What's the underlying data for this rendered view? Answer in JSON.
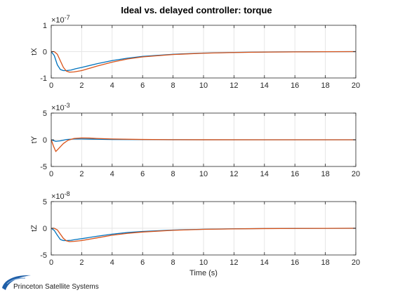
{
  "figure": {
    "title": "Ideal vs. delayed controller: torque",
    "background": "#ffffff",
    "axes_color": "#262626",
    "grid_color": "#e6e6e6"
  },
  "logo": {
    "text": "Princeton Satellite Systems",
    "color": "#1f5fa8"
  },
  "chart_data": [
    {
      "type": "line",
      "ylabel": "tX",
      "xlabel": "",
      "xlim": [
        0,
        20
      ],
      "ylim": [
        -1,
        1
      ],
      "xticks": [
        0,
        2,
        4,
        6,
        8,
        10,
        12,
        14,
        16,
        18,
        20
      ],
      "yticks": [
        -1,
        0,
        1
      ],
      "exponent_label": "×10",
      "exponent_power": "-7",
      "grid": true,
      "series": [
        {
          "color": "#0072bd",
          "x": [
            0,
            0.2,
            0.4,
            0.6,
            0.8,
            1.0,
            1.3,
            1.6,
            2,
            3,
            4,
            5,
            6,
            8,
            10,
            12,
            14,
            16,
            18,
            20
          ],
          "y": [
            0,
            -0.15,
            -0.5,
            -0.68,
            -0.72,
            -0.72,
            -0.7,
            -0.65,
            -0.6,
            -0.46,
            -0.34,
            -0.25,
            -0.18,
            -0.1,
            -0.055,
            -0.03,
            -0.015,
            -0.008,
            -0.004,
            0
          ]
        },
        {
          "color": "#d95319",
          "x": [
            0,
            0.2,
            0.4,
            0.6,
            0.8,
            1.0,
            1.2,
            1.5,
            2,
            3,
            4,
            5,
            6,
            8,
            10,
            12,
            14,
            16,
            18,
            20
          ],
          "y": [
            0,
            0,
            -0.1,
            -0.35,
            -0.6,
            -0.74,
            -0.78,
            -0.77,
            -0.72,
            -0.55,
            -0.4,
            -0.28,
            -0.2,
            -0.11,
            -0.06,
            -0.033,
            -0.017,
            -0.009,
            -0.004,
            0
          ]
        }
      ]
    },
    {
      "type": "line",
      "ylabel": "tY",
      "xlabel": "",
      "xlim": [
        0,
        20
      ],
      "ylim": [
        -5,
        5
      ],
      "xticks": [
        0,
        2,
        4,
        6,
        8,
        10,
        12,
        14,
        16,
        18,
        20
      ],
      "yticks": [
        -5,
        0,
        5
      ],
      "exponent_label": "×10",
      "exponent_power": "-3",
      "grid": true,
      "series": [
        {
          "color": "#0072bd",
          "x": [
            0,
            0.3,
            0.6,
            1,
            1.5,
            2,
            3,
            4,
            6,
            8,
            10,
            14,
            20
          ],
          "y": [
            0,
            -0.3,
            -0.2,
            0.05,
            0.15,
            0.15,
            0.1,
            0.06,
            0.03,
            0.01,
            0,
            0,
            0
          ]
        },
        {
          "color": "#d95319",
          "x": [
            0,
            0.15,
            0.3,
            0.5,
            0.8,
            1.1,
            1.5,
            2,
            2.5,
            3,
            4,
            6,
            8,
            10,
            14,
            20
          ],
          "y": [
            0,
            -1.2,
            -2.2,
            -1.6,
            -0.7,
            -0.1,
            0.25,
            0.35,
            0.32,
            0.25,
            0.15,
            0.06,
            0.02,
            0.01,
            0,
            0
          ]
        }
      ]
    },
    {
      "type": "line",
      "ylabel": "tZ",
      "xlabel": "Time (s)",
      "xlim": [
        0,
        20
      ],
      "ylim": [
        -5,
        5
      ],
      "xticks": [
        0,
        2,
        4,
        6,
        8,
        10,
        12,
        14,
        16,
        18,
        20
      ],
      "yticks": [
        -5,
        0,
        5
      ],
      "exponent_label": "×10",
      "exponent_power": "-8",
      "grid": true,
      "series": [
        {
          "color": "#0072bd",
          "x": [
            0,
            0.2,
            0.4,
            0.6,
            0.8,
            1.0,
            1.3,
            1.6,
            2,
            3,
            4,
            5,
            6,
            8,
            10,
            12,
            14,
            16,
            18,
            20
          ],
          "y": [
            0,
            -0.4,
            -1.3,
            -2.1,
            -2.3,
            -2.3,
            -2.25,
            -2.1,
            -1.95,
            -1.5,
            -1.1,
            -0.8,
            -0.6,
            -0.33,
            -0.18,
            -0.1,
            -0.05,
            -0.025,
            -0.012,
            0
          ]
        },
        {
          "color": "#d95319",
          "x": [
            0,
            0.2,
            0.4,
            0.6,
            0.8,
            1.0,
            1.2,
            1.5,
            2,
            3,
            4,
            5,
            6,
            8,
            10,
            12,
            14,
            16,
            18,
            20
          ],
          "y": [
            0,
            0,
            -0.3,
            -1.1,
            -1.9,
            -2.35,
            -2.5,
            -2.45,
            -2.3,
            -1.8,
            -1.3,
            -0.95,
            -0.7,
            -0.38,
            -0.2,
            -0.11,
            -0.06,
            -0.03,
            -0.013,
            0
          ]
        }
      ]
    }
  ]
}
